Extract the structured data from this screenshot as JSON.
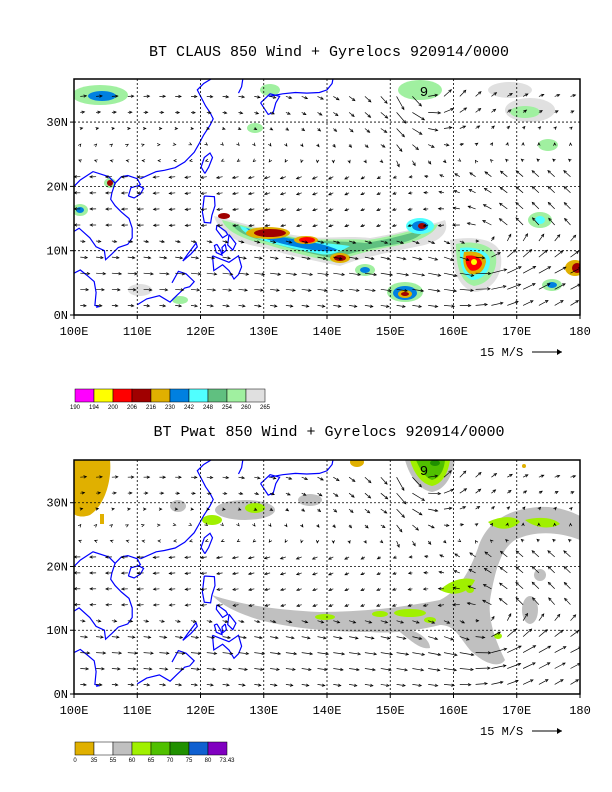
{
  "panels": [
    {
      "id": "claus",
      "title": "BT CLAUS 850 Wind + Gyrelocs 920914/0000",
      "cyclone_label": "9",
      "lat_labels": [
        "30N",
        "20N",
        "10N",
        "0N"
      ],
      "lon_labels": [
        "100E",
        "110E",
        "120E",
        "130E",
        "140E",
        "150E",
        "160E",
        "170E",
        "180"
      ],
      "vector_scale_label": "15 M/S",
      "legend": {
        "values": [
          "190",
          "194",
          "200",
          "206",
          "216",
          "230",
          "242",
          "248",
          "254",
          "260",
          "265"
        ],
        "colors": [
          "#ff00ff",
          "#ffff00",
          "#ff0000",
          "#a00000",
          "#e0b000",
          "#0080e0",
          "#50ffff",
          "#60c080",
          "#a0f0a0",
          "#e0e0e0"
        ]
      }
    },
    {
      "id": "pwat",
      "title": "BT Pwat 850 Wind + Gyrelocs 920914/0000",
      "cyclone_label": "9",
      "lat_labels": [
        "30N",
        "20N",
        "10N",
        "0N"
      ],
      "lon_labels": [
        "100E",
        "110E",
        "120E",
        "130E",
        "140E",
        "150E",
        "160E",
        "170E",
        "180"
      ],
      "vector_scale_label": "15 M/S",
      "legend": {
        "values": [
          "0",
          "35",
          "55",
          "60",
          "65",
          "70",
          "75",
          "80",
          "73.43"
        ],
        "colors": [
          "#e0b000",
          "#ffffff",
          "#c0c0c0",
          "#a0f000",
          "#50c000",
          "#209000",
          "#1060d0",
          "#8000c0"
        ]
      }
    }
  ],
  "colors": {
    "coastline": "#0000ff",
    "grid": "#000000"
  }
}
